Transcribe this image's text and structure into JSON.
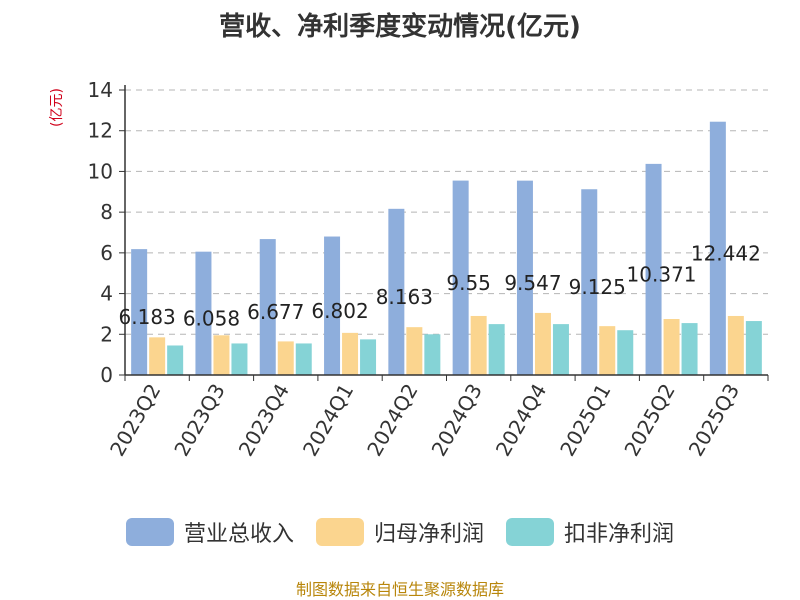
{
  "chart_data": {
    "type": "bar",
    "title": "营收、净利季度变动情况(亿元)",
    "ylabel": "(亿元)",
    "xlabel": "",
    "ylim": [
      0,
      14
    ],
    "yticks": [
      0,
      2,
      4,
      6,
      8,
      10,
      12,
      14
    ],
    "grid": true,
    "legend_position": "bottom",
    "categories": [
      "2023Q2",
      "2023Q3",
      "2023Q4",
      "2024Q1",
      "2024Q2",
      "2024Q3",
      "2024Q4",
      "2025Q1",
      "2025Q2",
      "2025Q3"
    ],
    "series": [
      {
        "name": "营业总收入",
        "color": "#8eaedc",
        "values": [
          6.183,
          6.058,
          6.677,
          6.802,
          8.163,
          9.55,
          9.547,
          9.125,
          10.371,
          12.442
        ],
        "labels": [
          "6.183",
          "6.058",
          "6.677",
          "6.802",
          "8.163",
          "9.55",
          "9.547",
          "9.125",
          "10.371",
          "12.442"
        ]
      },
      {
        "name": "归母净利润",
        "color": "#fbd58f",
        "values": [
          1.85,
          1.95,
          1.65,
          2.07,
          2.35,
          2.9,
          3.05,
          2.4,
          2.75,
          2.9
        ]
      },
      {
        "name": "扣非净利润",
        "color": "#85d3d6",
        "values": [
          1.45,
          1.55,
          1.55,
          1.75,
          2.0,
          2.5,
          2.5,
          2.2,
          2.55,
          2.65
        ]
      }
    ]
  },
  "source": "制图数据来自恒生聚源数据库"
}
